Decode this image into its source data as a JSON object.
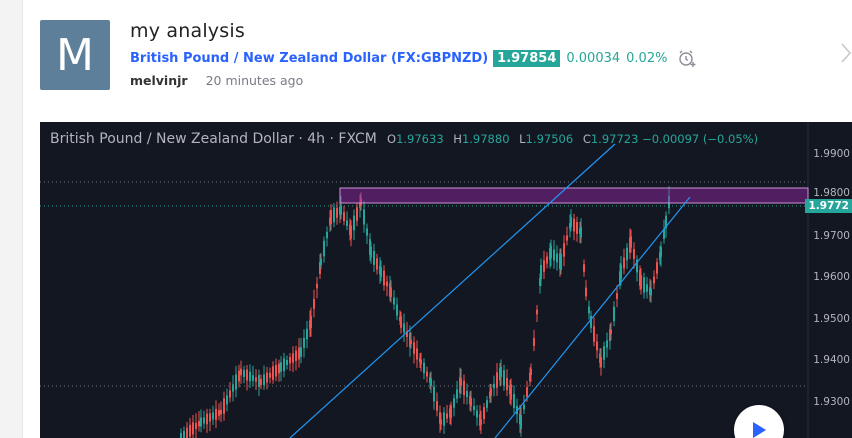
{
  "idea": {
    "avatar_letter": "M",
    "title": "my analysis",
    "symbol_name": "British Pound / New Zealand Dollar",
    "symbol_ticker": "(FX:GBPNZD)",
    "price": "1.97854",
    "change": "0.00034",
    "change_pct": "0.02%",
    "author": "melvinjr",
    "time": "20 minutes ago",
    "alarm_icon": "alarm-clock-plus-icon",
    "next_icon": "chevron-right-icon"
  },
  "chart": {
    "legend": {
      "symbol": "British Pound / New Zealand Dollar · 4h · FXCM",
      "o_label": "O",
      "o_value": "1.97633",
      "h_label": "H",
      "h_value": "1.97880",
      "l_label": "L",
      "l_value": "1.97506",
      "c_label": "C",
      "c_value": "1.97723",
      "change": "−0.00097 (−0.05%)"
    },
    "price_axis": [
      "1.9900",
      "1.9800",
      "1.9700",
      "1.9600",
      "1.9500",
      "1.9400",
      "1.9300"
    ],
    "last_price_tag": "1.9772",
    "colors": {
      "background": "#131722",
      "up": "#26a69a",
      "down": "#ef5350",
      "trendline": "#2196f3",
      "zone": "#9c27b0"
    },
    "play_icon": "play-icon"
  }
}
